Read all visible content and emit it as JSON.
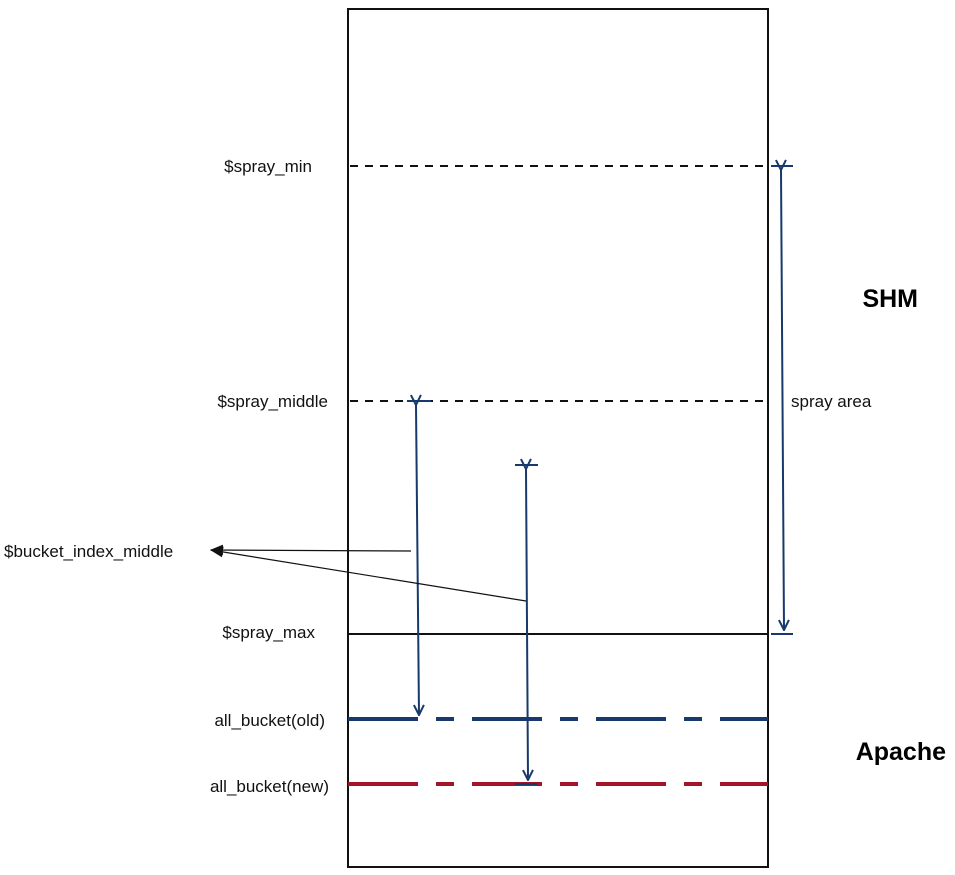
{
  "labels": {
    "spray_min": "$spray_min",
    "spray_middle": "$spray_middle",
    "bucket_index_middle": "$bucket_index_middle",
    "spray_max": "$spray_max",
    "all_bucket_old": "all_bucket(old)",
    "all_bucket_new": "all_bucket(new)"
  },
  "regions": {
    "shm": "SHM",
    "apache": "Apache"
  },
  "spray_area_label": "spray area",
  "colors": {
    "outline": "#111111",
    "blue": "#17396b",
    "red": "#a3142a"
  }
}
